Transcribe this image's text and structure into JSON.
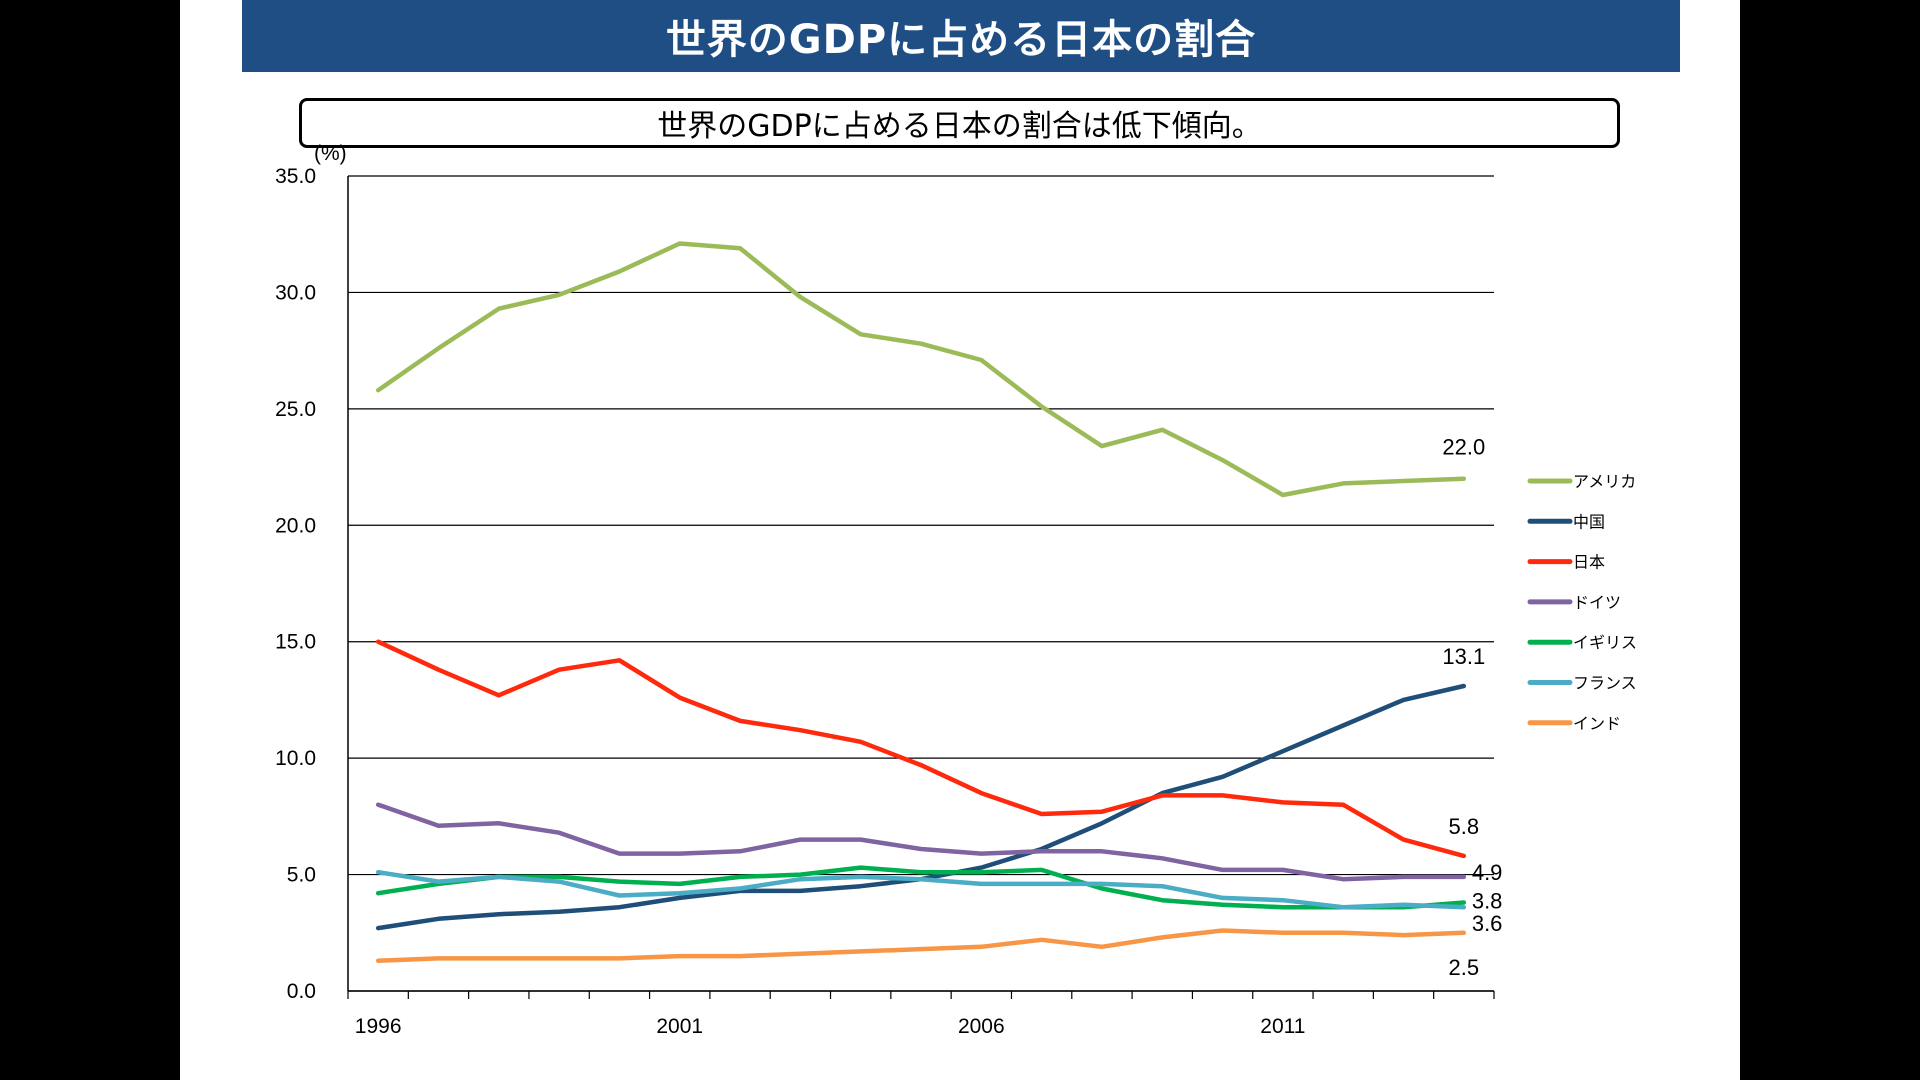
{
  "banner": {
    "title": "世界のGDPに占める日本の割合"
  },
  "subtitle": "世界のGDPに占める日本の割合は低下傾向。",
  "chart_data": {
    "type": "line",
    "ylabel": "(%)",
    "ylim": [
      0,
      35
    ],
    "yticks": [
      "0.0",
      "5.0",
      "10.0",
      "15.0",
      "20.0",
      "25.0",
      "30.0",
      "35.0"
    ],
    "x": [
      1996,
      1997,
      1998,
      1999,
      2000,
      2001,
      2002,
      2003,
      2004,
      2005,
      2006,
      2007,
      2008,
      2009,
      2010,
      2011,
      2012,
      2013,
      2014
    ],
    "xtick_labels": [
      "1996",
      "2001",
      "2006",
      "2011"
    ],
    "grid": true,
    "legend_position": "right",
    "series": [
      {
        "name": "アメリカ",
        "color": "#9bbb59",
        "values": [
          25.8,
          27.6,
          29.3,
          29.9,
          30.9,
          32.1,
          31.9,
          29.8,
          28.2,
          27.8,
          27.1,
          25.1,
          23.4,
          24.1,
          22.8,
          21.3,
          21.8,
          21.9,
          22.0
        ],
        "end_label": "22.0"
      },
      {
        "name": "中国",
        "color": "#1f4e79",
        "values": [
          2.7,
          3.1,
          3.3,
          3.4,
          3.6,
          4.0,
          4.3,
          4.3,
          4.5,
          4.8,
          5.3,
          6.1,
          7.2,
          8.5,
          9.2,
          10.3,
          11.4,
          12.5,
          13.1
        ],
        "end_label": "13.1"
      },
      {
        "name": "日本",
        "color": "#ff2a0e",
        "values": [
          15.0,
          13.8,
          12.7,
          13.8,
          14.2,
          12.6,
          11.6,
          11.2,
          10.7,
          9.7,
          8.5,
          7.6,
          7.7,
          8.4,
          8.4,
          8.1,
          8.0,
          6.5,
          5.8
        ],
        "end_label": "5.8"
      },
      {
        "name": "ドイツ",
        "color": "#8064a2",
        "values": [
          8.0,
          7.1,
          7.2,
          6.8,
          5.9,
          5.9,
          6.0,
          6.5,
          6.5,
          6.1,
          5.9,
          6.0,
          6.0,
          5.7,
          5.2,
          5.2,
          4.8,
          4.9,
          4.9
        ],
        "end_label": "4.9"
      },
      {
        "name": "イギリス",
        "color": "#00b050",
        "values": [
          4.2,
          4.6,
          4.9,
          4.9,
          4.7,
          4.6,
          4.9,
          5.0,
          5.3,
          5.1,
          5.1,
          5.2,
          4.4,
          3.9,
          3.7,
          3.6,
          3.6,
          3.6,
          3.8
        ],
        "end_label": "3.8"
      },
      {
        "name": "フランス",
        "color": "#4bacc6",
        "values": [
          5.1,
          4.7,
          4.9,
          4.7,
          4.1,
          4.2,
          4.4,
          4.8,
          4.9,
          4.8,
          4.6,
          4.6,
          4.6,
          4.5,
          4.0,
          3.9,
          3.6,
          3.7,
          3.6
        ],
        "end_label": "3.6"
      },
      {
        "name": "インド",
        "color": "#f79646",
        "values": [
          1.3,
          1.4,
          1.4,
          1.4,
          1.4,
          1.5,
          1.5,
          1.6,
          1.7,
          1.8,
          1.9,
          2.2,
          1.9,
          2.3,
          2.6,
          2.5,
          2.5,
          2.4,
          2.5
        ],
        "end_label": "2.5"
      }
    ]
  }
}
